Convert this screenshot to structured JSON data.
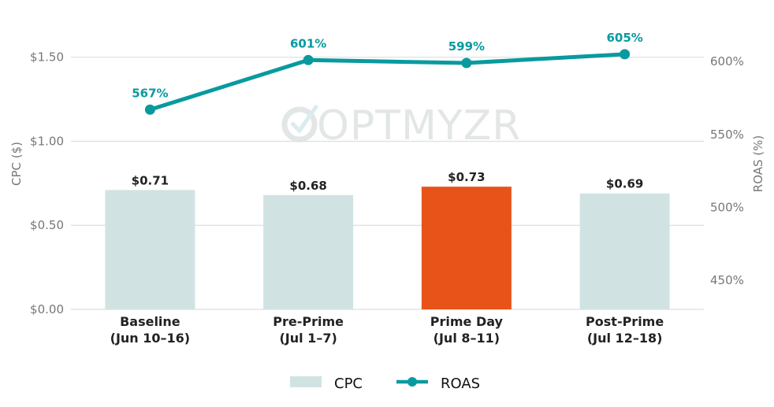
{
  "watermark": "OPTMYZR",
  "colors": {
    "cpc_bar": "#d0e3e2",
    "cpc_bar_highlight": "#e8531a",
    "roas_line": "#089a9f",
    "gridline": "#dedede",
    "tick_text": "#777777",
    "label_text": "#222222"
  },
  "chart_data": {
    "type": "bar",
    "categories": [
      [
        "Baseline",
        "(Jun 10–16)"
      ],
      [
        "Pre-Prime",
        "(Jul 1–7)"
      ],
      [
        "Prime Day",
        "(Jul 8–11)"
      ],
      [
        "Post-Prime",
        "(Jul 12–18)"
      ]
    ],
    "highlight_index": 2,
    "series": [
      {
        "name": "CPC",
        "type": "bar",
        "axis": "left",
        "values": [
          0.71,
          0.68,
          0.73,
          0.69
        ],
        "labels": [
          "$0.71",
          "$0.68",
          "$0.73",
          "$0.69"
        ]
      },
      {
        "name": "ROAS",
        "type": "line",
        "axis": "right",
        "values": [
          567,
          601,
          599,
          605
        ],
        "labels": [
          "567%",
          "601%",
          "599%",
          "605%"
        ]
      }
    ],
    "ylabel_left": "CPC ($)",
    "ylabel_right": "ROAS (%)",
    "ylim_left": [
      0,
      1.7
    ],
    "ylim_right": [
      430,
      626
    ],
    "yticks_left": [
      0,
      0.5,
      1.0,
      1.5
    ],
    "yticks_left_labels": [
      "$0.00",
      "$0.50",
      "$1.00",
      "$1.50"
    ],
    "yticks_right": [
      450,
      500,
      550,
      600
    ],
    "yticks_right_labels": [
      "450%",
      "500%",
      "550%",
      "600%"
    ],
    "grid": true,
    "legend": {
      "placement": "bottom-center",
      "entries": [
        "CPC",
        "ROAS"
      ]
    }
  }
}
